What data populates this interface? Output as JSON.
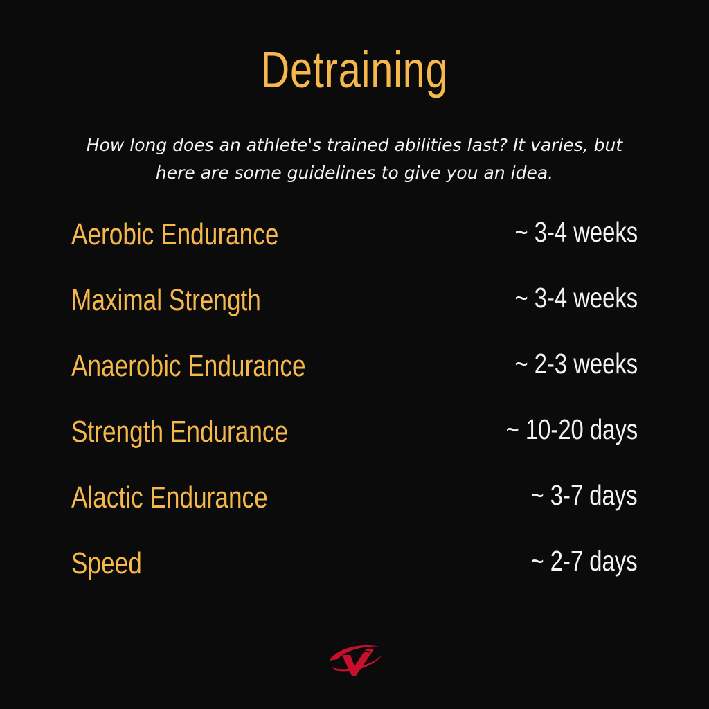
{
  "title": "Detraining",
  "subtitle_line1": "How long does an athlete's trained abilities last? It varies, but",
  "subtitle_line2": "here are some guidelines to give you an idea.",
  "rows": [
    {
      "label": "Aerobic Endurance",
      "value": "~ 3-4 weeks"
    },
    {
      "label": "Maximal Strength",
      "value": "~ 3-4 weeks"
    },
    {
      "label": "Anaerobic Endurance",
      "value": "~ 2-3 weeks"
    },
    {
      "label": "Strength Endurance",
      "value": "~ 10-20 days"
    },
    {
      "label": "Alactic Endurance",
      "value": "~ 3-7 days"
    },
    {
      "label": "Speed",
      "value": "~ 2-7 days"
    }
  ],
  "colors": {
    "background": "#0b0b0b",
    "accent": "#f7b84b",
    "text": "#f4f4f4",
    "logo": "#c8102e"
  },
  "logo_icon": "red-swoosh-logo-icon"
}
